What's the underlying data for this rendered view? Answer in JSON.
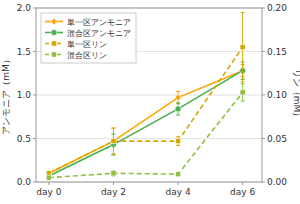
{
  "chart_data": {
    "type": "line",
    "x": [
      0,
      2,
      4,
      6
    ],
    "xlim": [
      -0.4,
      6.6
    ],
    "xticks": [
      {
        "value": 0,
        "label": "day 0"
      },
      {
        "value": 2,
        "label": "day 2"
      },
      {
        "value": 4,
        "label": "day 4"
      },
      {
        "value": 6,
        "label": "day 6"
      }
    ],
    "ylabel": "アンモニア（mM）",
    "y2label": "リン（mM）",
    "ylim": [
      0.0,
      2.0
    ],
    "yticks": [
      {
        "value": 0.0,
        "label": "0.0"
      },
      0.5,
      {
        "value": 1.0,
        "label": "1.0"
      },
      1.5,
      {
        "value": 2.0,
        "label": "2.0"
      }
    ],
    "y2lim": [
      0.0,
      0.2
    ],
    "y2ticks": [
      {
        "value": 0.0,
        "label": "0.00"
      },
      0.05,
      {
        "value": 0.1,
        "label": "0.10"
      },
      {
        "value": 0.15,
        "label": "0.15"
      },
      {
        "value": 0.2,
        "label": "0.20"
      }
    ],
    "grid": true,
    "legend": "upper left",
    "series": [
      {
        "name": "単一区アンモニア",
        "color": "#FFA500",
        "marker": "diamond",
        "line_style": "solid",
        "values": [
          0.1,
          0.47,
          0.97,
          1.28
        ],
        "errors": [
          0.02,
          0.15,
          0.07,
          0.07
        ]
      },
      {
        "name": "混合区アンモニア",
        "color": "#4CAF50",
        "marker": "circle",
        "line_style": "solid",
        "values": [
          0.07,
          0.43,
          0.84,
          1.28
        ],
        "errors": [
          0.02,
          0.12,
          0.07,
          0.1
        ]
      },
      {
        "name": "単一区リン",
        "color": "#D4A800",
        "marker": "square",
        "line_style": "dashed",
        "axis": "y2",
        "values": [
          0.01,
          0.047,
          0.047,
          0.155
        ],
        "errors": [
          0.002,
          0.015,
          0.005,
          0.04
        ]
      },
      {
        "name": "混合区リン",
        "color": "#90C040",
        "marker": "square",
        "line_style": "dashed",
        "axis": "y2",
        "values": [
          0.005,
          0.01,
          0.009,
          0.103
        ],
        "errors": [
          0.002,
          0.003,
          0.002,
          0.01
        ]
      }
    ]
  }
}
